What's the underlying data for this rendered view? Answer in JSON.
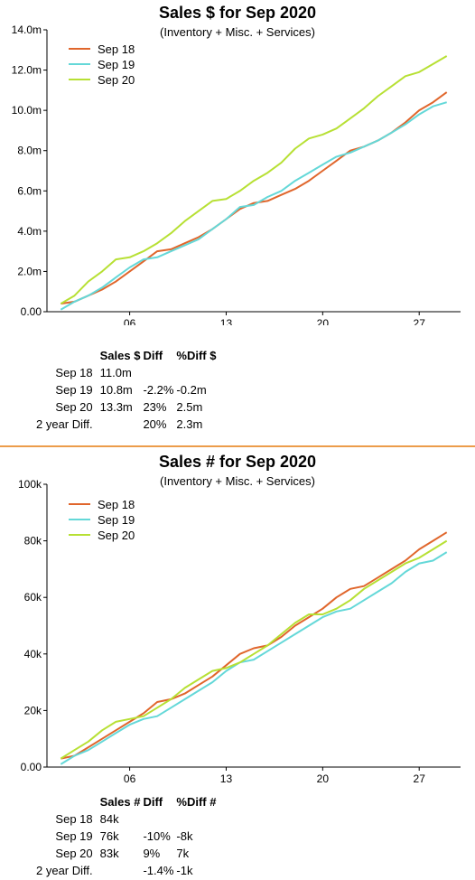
{
  "chart_data": [
    {
      "type": "line",
      "title": "Sales $ for Sep 2020",
      "subtitle": "(Inventory + Misc. + Services)",
      "xlabel": "",
      "ylabel": "",
      "x": [
        1,
        2,
        3,
        4,
        5,
        6,
        7,
        8,
        9,
        10,
        11,
        12,
        13,
        14,
        15,
        16,
        17,
        18,
        19,
        20,
        21,
        22,
        23,
        24,
        25,
        26,
        27,
        28,
        29
      ],
      "xlim": [
        0,
        30
      ],
      "xticks": [
        6,
        13,
        20,
        27
      ],
      "xtick_labels": [
        "06",
        "13",
        "20",
        "27"
      ],
      "ylim": [
        0,
        14
      ],
      "yticks": [
        0,
        2,
        4,
        6,
        8,
        10,
        12,
        14
      ],
      "ytick_labels": [
        "0.00",
        "2.0m",
        "4.0m",
        "6.0m",
        "8.0m",
        "10.0m",
        "12.0m",
        "14.0m"
      ],
      "grid": false,
      "legend_position": "top-left",
      "series": [
        {
          "name": "Sep 18",
          "color": "#e0662c",
          "values": [
            0.4,
            0.5,
            0.8,
            1.1,
            1.5,
            2.0,
            2.5,
            3.0,
            3.1,
            3.4,
            3.7,
            4.1,
            4.6,
            5.1,
            5.4,
            5.5,
            5.8,
            6.1,
            6.5,
            7.0,
            7.5,
            8.0,
            8.2,
            8.5,
            8.9,
            9.4,
            10.0,
            10.4,
            10.9
          ]
        },
        {
          "name": "Sep 19",
          "color": "#64d8d8",
          "values": [
            0.1,
            0.5,
            0.8,
            1.2,
            1.7,
            2.2,
            2.6,
            2.7,
            3.0,
            3.3,
            3.6,
            4.1,
            4.6,
            5.2,
            5.3,
            5.7,
            6.0,
            6.5,
            6.9,
            7.3,
            7.7,
            7.9,
            8.2,
            8.5,
            8.9,
            9.3,
            9.8,
            10.2,
            10.4
          ]
        },
        {
          "name": "Sep 20",
          "color": "#b7e034",
          "values": [
            0.4,
            0.8,
            1.5,
            2.0,
            2.6,
            2.7,
            3.0,
            3.4,
            3.9,
            4.5,
            5.0,
            5.5,
            5.6,
            6.0,
            6.5,
            6.9,
            7.4,
            8.1,
            8.6,
            8.8,
            9.1,
            9.6,
            10.1,
            10.7,
            11.2,
            11.7,
            11.9,
            12.3,
            12.7
          ]
        }
      ]
    },
    {
      "type": "line",
      "title": "Sales # for Sep 2020",
      "subtitle": "(Inventory + Misc. + Services)",
      "xlabel": "",
      "ylabel": "",
      "x": [
        1,
        2,
        3,
        4,
        5,
        6,
        7,
        8,
        9,
        10,
        11,
        12,
        13,
        14,
        15,
        16,
        17,
        18,
        19,
        20,
        21,
        22,
        23,
        24,
        25,
        26,
        27,
        28,
        29
      ],
      "xlim": [
        0,
        30
      ],
      "xticks": [
        6,
        13,
        20,
        27
      ],
      "xtick_labels": [
        "06",
        "13",
        "20",
        "27"
      ],
      "ylim": [
        0,
        100
      ],
      "yticks": [
        0,
        20,
        40,
        60,
        80,
        100
      ],
      "ytick_labels": [
        "0.00",
        "20k",
        "40k",
        "60k",
        "80k",
        "100k"
      ],
      "grid": false,
      "legend_position": "top-left",
      "series": [
        {
          "name": "Sep 18",
          "color": "#e0662c",
          "values": [
            3,
            4,
            7,
            10,
            13,
            16,
            19,
            23,
            24,
            26,
            29,
            32,
            36,
            40,
            42,
            43,
            46,
            50,
            53,
            56,
            60,
            63,
            64,
            67,
            70,
            73,
            77,
            80,
            83
          ]
        },
        {
          "name": "Sep 19",
          "color": "#64d8d8",
          "values": [
            1,
            4,
            6,
            9,
            12,
            15,
            17,
            18,
            21,
            24,
            27,
            30,
            34,
            37,
            38,
            41,
            44,
            47,
            50,
            53,
            55,
            56,
            59,
            62,
            65,
            69,
            72,
            73,
            76
          ]
        },
        {
          "name": "Sep 20",
          "color": "#b7e034",
          "values": [
            3,
            6,
            9,
            13,
            16,
            17,
            18,
            21,
            24,
            28,
            31,
            34,
            35,
            37,
            40,
            43,
            47,
            51,
            54,
            54,
            56,
            59,
            63,
            66,
            69,
            72,
            74,
            77,
            80
          ]
        }
      ]
    }
  ],
  "stats": [
    {
      "header": {
        "sales": "Sales $",
        "diff": "Diff",
        "pct": "%Diff $"
      },
      "rows": [
        {
          "label": "Sep 18",
          "sales": "11.0m",
          "diff": "",
          "pct": ""
        },
        {
          "label": "Sep 19",
          "sales": "10.8m",
          "diff": "-2.2%",
          "pct": "-0.2m"
        },
        {
          "label": "Sep 20",
          "sales": "13.3m",
          "diff": "23%",
          "pct": "2.5m"
        },
        {
          "label": "2 year Diff.",
          "sales": "",
          "diff": "20%",
          "pct": "2.3m"
        }
      ]
    },
    {
      "header": {
        "sales": "Sales #",
        "diff": "Diff",
        "pct": "%Diff #"
      },
      "rows": [
        {
          "label": "Sep 18",
          "sales": "84k",
          "diff": "",
          "pct": ""
        },
        {
          "label": "Sep 19",
          "sales": "76k",
          "diff": "-10%",
          "pct": "-8k"
        },
        {
          "label": "Sep 20",
          "sales": "83k",
          "diff": "9%",
          "pct": "7k"
        },
        {
          "label": "2 year Diff.",
          "sales": "",
          "diff": "-1.4%",
          "pct": "-1k"
        }
      ]
    }
  ]
}
